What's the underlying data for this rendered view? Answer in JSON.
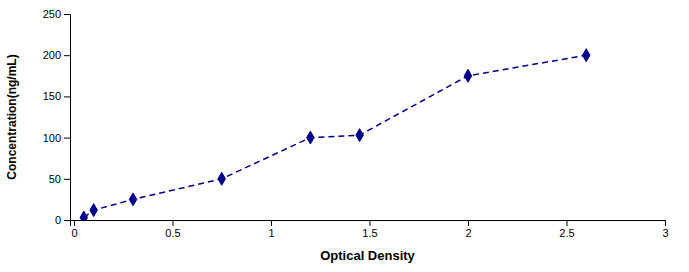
{
  "chart_data": {
    "type": "line",
    "xlabel": "Optical Density",
    "ylabel": "Concentration(ng/mL)",
    "x": [
      0.05,
      0.1,
      0.3,
      0.75,
      1.2,
      1.45,
      2.0,
      2.6
    ],
    "values": [
      3,
      12,
      25,
      50,
      100,
      103,
      175,
      200
    ],
    "color": "#00008B",
    "marker": "diamond",
    "line_style": "dashed",
    "xlim": [
      -0.02,
      3.0
    ],
    "ylim": [
      0,
      250
    ],
    "xticks": [
      0,
      0.5,
      1,
      1.5,
      2,
      2.5,
      3
    ],
    "yticks": [
      0,
      50,
      100,
      150,
      200,
      250
    ],
    "grid": false
  }
}
